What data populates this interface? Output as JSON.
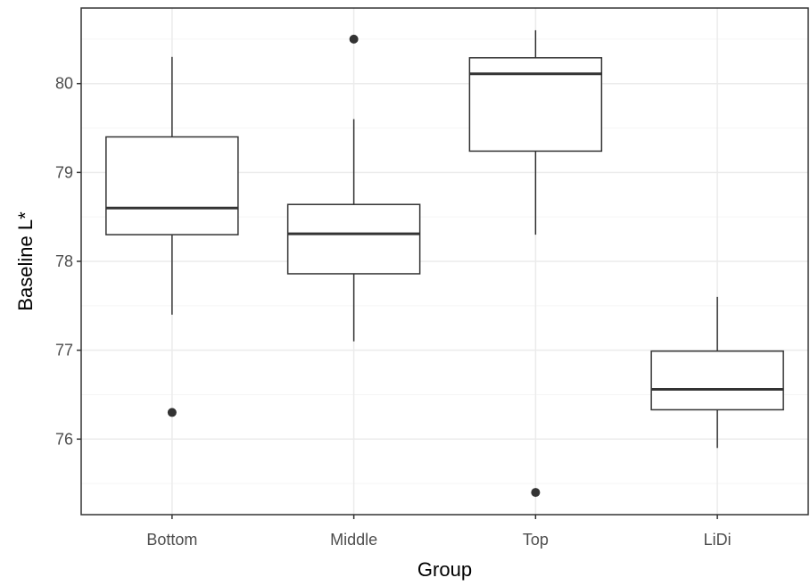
{
  "chart_data": {
    "type": "boxplot",
    "title": "",
    "xlabel": "Group",
    "ylabel": "Baseline L*",
    "categories": [
      "Bottom",
      "Middle",
      "Top",
      "LiDi"
    ],
    "ylim": [
      75.15,
      80.85
    ],
    "yticks": [
      76,
      77,
      78,
      79,
      80
    ],
    "ytick_labels": [
      "76",
      "77",
      "78",
      "79",
      "80"
    ],
    "grid": true,
    "legend": "none",
    "boxes": [
      {
        "category": "Bottom",
        "whisker_low": 77.4,
        "q1": 78.3,
        "median": 78.6,
        "q3": 79.4,
        "whisker_high": 80.3,
        "outliers": [
          76.3
        ]
      },
      {
        "category": "Middle",
        "whisker_low": 77.1,
        "q1": 77.86,
        "median": 78.31,
        "q3": 78.64,
        "whisker_high": 79.6,
        "outliers": [
          80.5
        ]
      },
      {
        "category": "Top",
        "whisker_low": 78.3,
        "q1": 79.24,
        "median": 80.11,
        "q3": 80.29,
        "whisker_high": 80.6,
        "outliers": [
          75.4
        ]
      },
      {
        "category": "LiDi",
        "whisker_low": 75.9,
        "q1": 76.33,
        "median": 76.56,
        "q3": 76.99,
        "whisker_high": 77.6,
        "outliers": []
      }
    ],
    "colors": {
      "box_fill": "#ffffff",
      "box_stroke": "#333333",
      "grid_major": "#ebebeb",
      "grid_minor": "#f5f5f5",
      "panel_border": "#333333"
    }
  }
}
